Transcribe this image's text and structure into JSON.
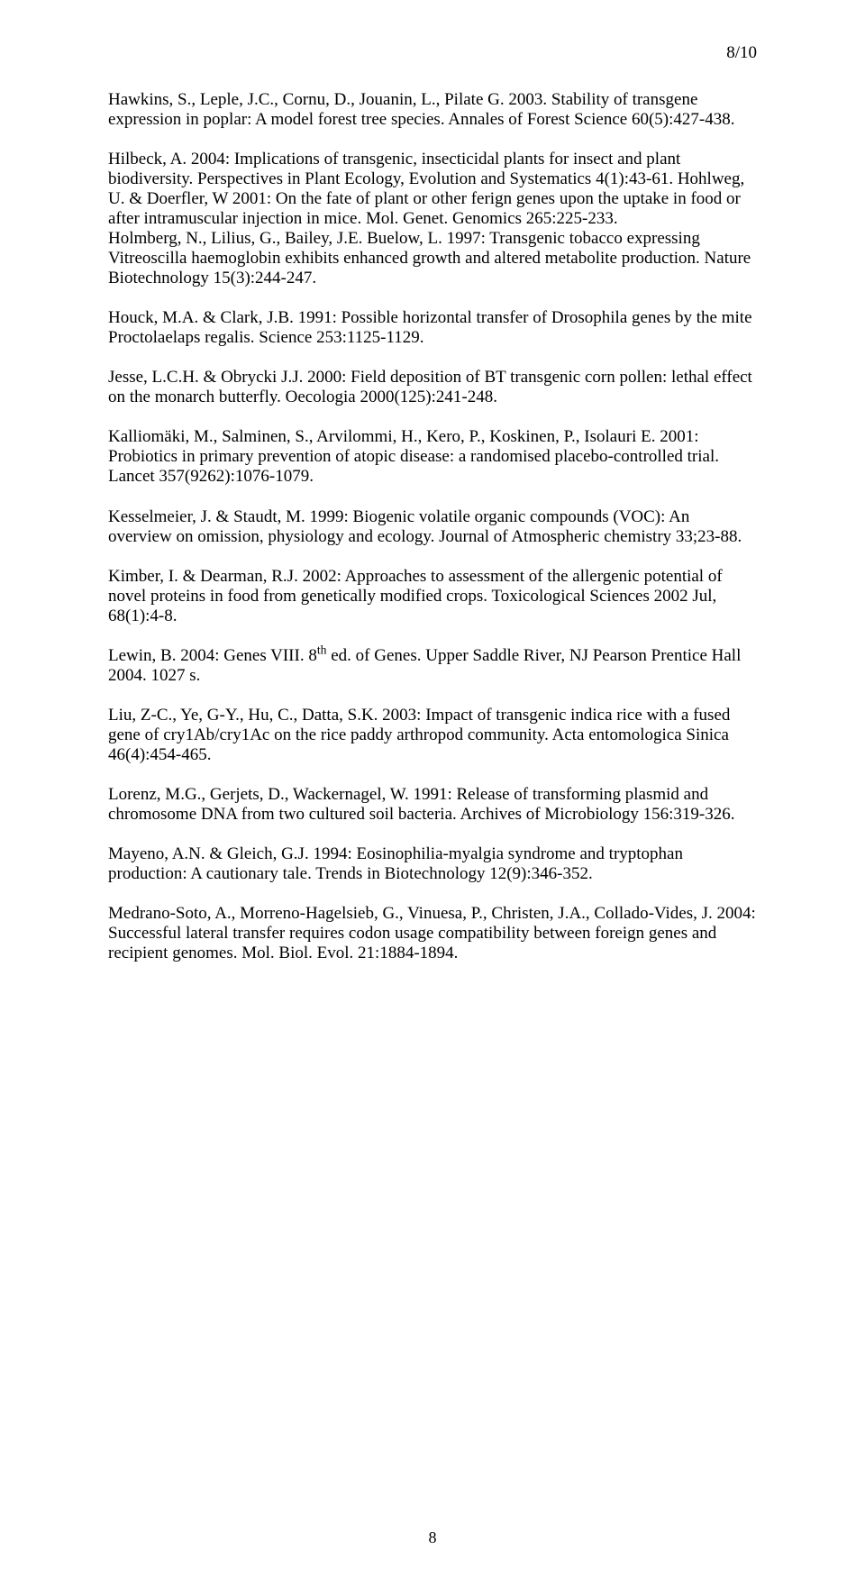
{
  "page_indicator": "8/10",
  "footer_page": "8",
  "paragraphs": [
    "Hawkins, S., Leple, J.C., Cornu, D., Jouanin, L., Pilate G. 2003. Stability of transgene expression in poplar: A model forest tree species. Annales of Forest Science 60(5):427-438.",
    "Hilbeck, A. 2004: Implications of transgenic, insecticidal plants for insect and plant biodiversity. Perspectives in Plant Ecology, Evolution and Systematics 4(1):43-61. Hohlweg, U. & Doerfler, W 2001: On the fate of plant or other ferign genes upon the uptake in food or after intramuscular injection in mice. Mol. Genet. Genomics 265:225-233.\nHolmberg, N., Lilius, G., Bailey, J.E. Buelow, L. 1997: Transgenic tobacco expressing Vitreoscilla haemoglobin exhibits enhanced growth and altered metabolite production. Nature Biotechnology 15(3):244-247.",
    "Houck, M.A. & Clark, J.B. 1991: Possible horizontal transfer of Drosophila genes by the mite Proctolaelaps regalis. Science 253:1125-1129.",
    "Jesse, L.C.H. & Obrycki J.J. 2000: Field deposition of BT transgenic corn pollen: lethal effect on the monarch butterfly. Oecologia 2000(125):241-248.",
    "Kalliomäki, M., Salminen, S., Arvilommi, H., Kero, P., Koskinen, P., Isolauri E. 2001: Probiotics in primary prevention of atopic disease: a randomised placebo-controlled trial. Lancet 357(9262):1076-1079.",
    "Kesselmeier, J. & Staudt, M. 1999: Biogenic volatile organic compounds (VOC): An overview on omission, physiology and ecology. Journal of Atmospheric chemistry 33;23-88.",
    "Kimber, I. & Dearman, R.J. 2002: Approaches to assessment of the allergenic potential of novel proteins in food from genetically modified crops. Toxicological Sciences 2002 Jul, 68(1):4-8.",
    "Lewin, B. 2004: Genes VIII. 8<sup>th</sup> ed. of Genes. Upper Saddle River, NJ Pearson Prentice Hall 2004. 1027 s.",
    "Liu, Z-C., Ye, G-Y., Hu, C., Datta, S.K. 2003: Impact of transgenic indica rice with a fused gene of cry1Ab/cry1Ac on the rice paddy arthropod community. Acta entomologica Sinica 46(4):454-465.",
    "Lorenz, M.G., Gerjets, D., Wackernagel, W. 1991: Release of transforming plasmid and chromosome DNA from two cultured soil bacteria. Archives of Microbiology 156:319-326.",
    "Mayeno, A.N. & Gleich, G.J. 1994: Eosinophilia-myalgia syndrome and tryptophan production: A cautionary tale.  Trends in Biotechnology 12(9):346-352.",
    "Medrano-Soto, A., Morreno-Hagelsieb, G., Vinuesa, P., Christen, J.A., Collado-Vides, J. 2004: Successful lateral transfer requires codon usage compatibility between foreign genes and recipient genomes. Mol. Biol. Evol. 21:1884-1894."
  ]
}
